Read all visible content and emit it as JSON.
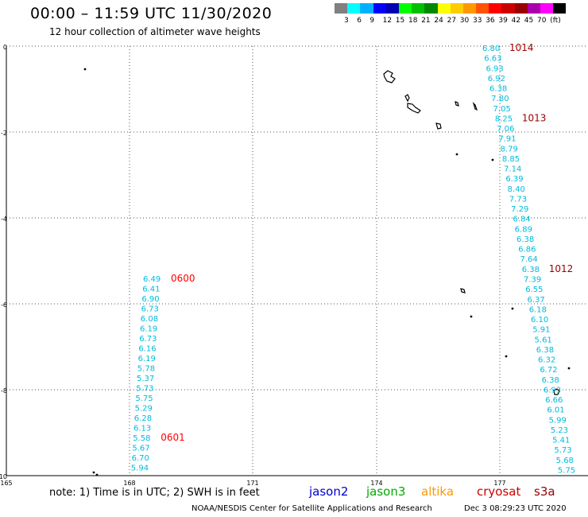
{
  "header": {
    "title": "00:00 – 11:59 UTC 11/30/2020",
    "subtitle": "12 hour collection of altimeter wave heights"
  },
  "legend": {
    "unit": "(ft)",
    "colors": [
      "#808080",
      "#00ffff",
      "#00b0ff",
      "#0000ff",
      "#0000b0",
      "#00ff00",
      "#00c000",
      "#008800",
      "#ffff00",
      "#ffcc00",
      "#ff9900",
      "#ff5500",
      "#ff0000",
      "#cc0000",
      "#990000",
      "#aa00aa",
      "#ff00ff",
      "#000000"
    ],
    "labels": [
      "3",
      "6",
      "9",
      "12",
      "15",
      "18",
      "21",
      "24",
      "27",
      "30",
      "33",
      "36",
      "39",
      "42",
      "45",
      "70"
    ]
  },
  "map": {
    "lon_ticks": [
      "165",
      "168",
      "171",
      "174",
      "177"
    ],
    "lat_ticks": [
      "0",
      "-2",
      "-4",
      "-6",
      "-8",
      "-10"
    ],
    "swh_color": "#00bbdd",
    "tracks": [
      {
        "values": [
          "6.80",
          "6.63",
          "6.93",
          "6.92",
          "6.38",
          "7.80",
          "7.05",
          "8.25",
          "7.06",
          "7.91",
          "8.79",
          "8.85",
          "7.14",
          "6.39",
          "8.40",
          "7.73",
          "7.29",
          "6.84",
          "6.89",
          "6.38",
          "6.86",
          "7.64",
          "6.38",
          "7.39",
          "6.55",
          "6.37",
          "6.18",
          "6.10",
          "5.91",
          "5.61",
          "6.38",
          "6.32",
          "6.72",
          "6.38",
          "6.93",
          "6.66",
          "6.01",
          "5.99",
          "5.23",
          "5.41",
          "5.73",
          "5.68",
          "5.75"
        ],
        "times": [
          {
            "label": "1014",
            "color": "#990000"
          },
          {
            "label": "1013",
            "color": "#990000"
          },
          {
            "label": "1012",
            "color": "#990000"
          }
        ]
      },
      {
        "values": [
          "6.49",
          "6.41",
          "6.90",
          "6.73",
          "6.08",
          "6.19",
          "6.73",
          "6.16",
          "6.19",
          "5.78",
          "5.37",
          "5.73",
          "5.75",
          "5.29",
          "6.28",
          "6.13",
          "5.58",
          "5.67",
          "6.70",
          "5.94"
        ],
        "times": [
          {
            "label": "0600",
            "color": "#ff0000"
          },
          {
            "label": "0601",
            "color": "#ff0000"
          }
        ]
      }
    ]
  },
  "footer": {
    "note": "note: 1) Time is in UTC; 2) SWH is in feet",
    "satellites": {
      "jason2": "jason2",
      "jason3": "jason3",
      "altika": "altika",
      "cryosat": "cryosat",
      "s3a": "s3a"
    },
    "credit": "NOAA/NESDIS Center for Satellite Applications and Research",
    "date": "Dec 3 08:29:23 UTC 2020"
  }
}
